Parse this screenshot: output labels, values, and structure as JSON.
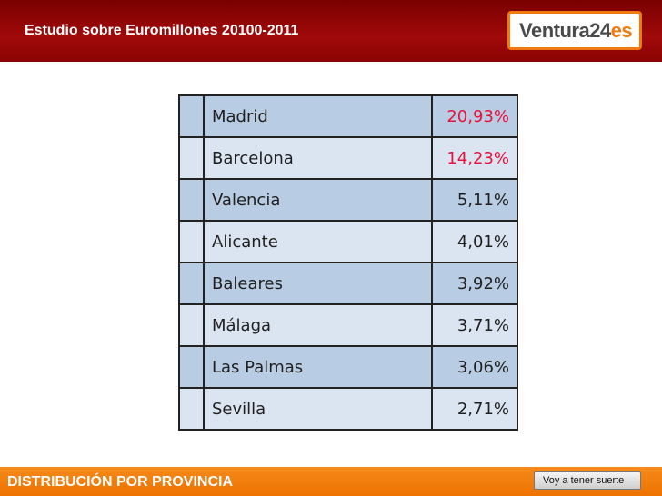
{
  "header": {
    "title": "Estudio sobre Euromillones 20100-2011",
    "logo": {
      "brand": "Ventura24",
      "suffix": "es"
    }
  },
  "table": {
    "rows": [
      [
        "Madrid",
        "20,93%"
      ],
      [
        "Barcelona",
        "14,23%"
      ],
      [
        "Valencia",
        "5,11%"
      ],
      [
        "Alicante",
        "4,01%"
      ],
      [
        "Baleares",
        "3,92%"
      ],
      [
        "Málaga",
        "3,71%"
      ],
      [
        "Las Palmas",
        "3,06%"
      ],
      [
        "Sevilla",
        "2,71%"
      ]
    ]
  },
  "footer": {
    "title": "DISTRIBUCIÓN POR PROVINCIA",
    "button": "Voy a tener suerte"
  }
}
